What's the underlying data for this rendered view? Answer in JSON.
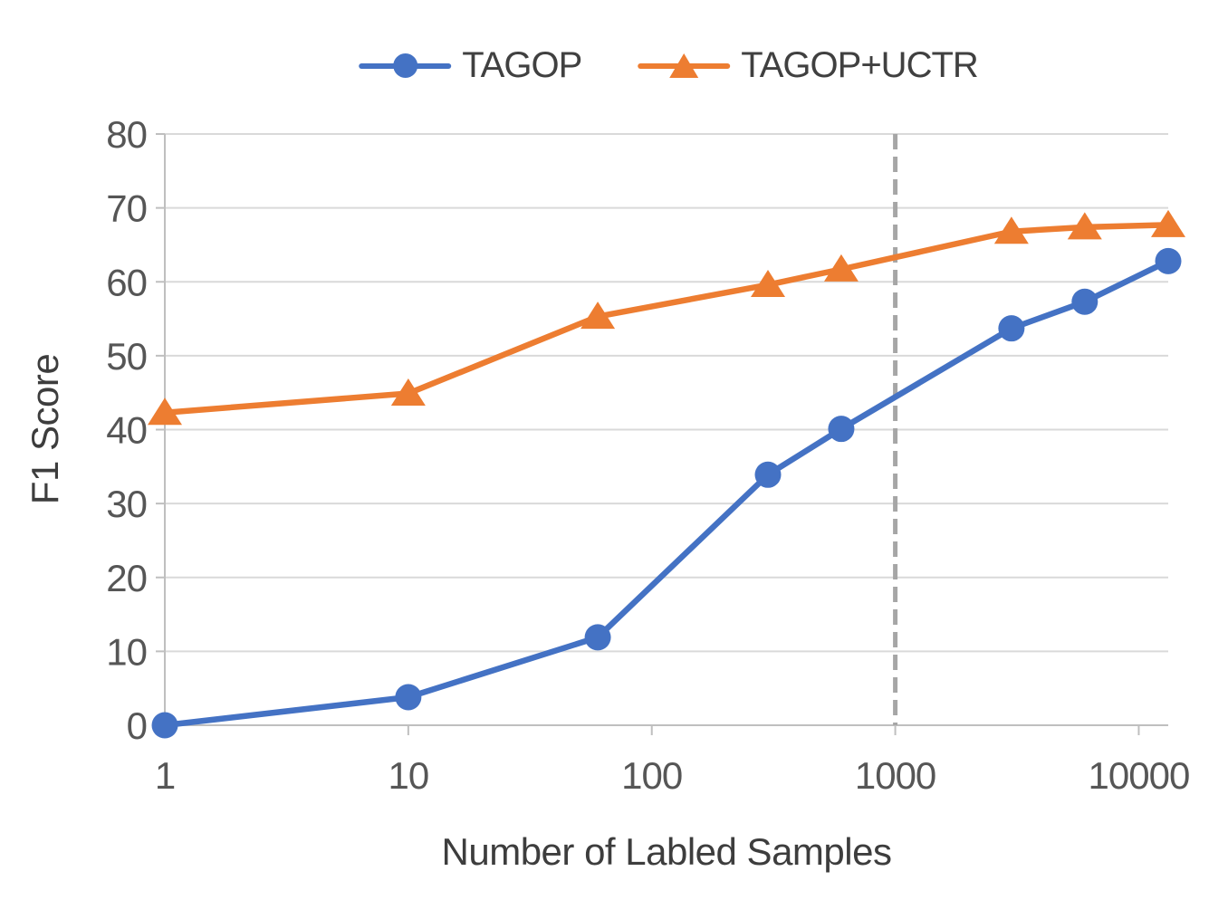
{
  "chart_data": {
    "type": "line",
    "title": "",
    "xlabel": "Number of Labled Samples",
    "ylabel": "F1 Score",
    "x_scale": "log",
    "xlim": [
      1,
      13215
    ],
    "ylim": [
      0,
      80
    ],
    "x_ticks": [
      1,
      10,
      100,
      1000,
      10000
    ],
    "x_tick_labels": [
      "1",
      "10",
      "100",
      "1000",
      "10000"
    ],
    "y_ticks": [
      0,
      10,
      20,
      30,
      40,
      50,
      60,
      70,
      80
    ],
    "grid": "horizontal",
    "legend_position": "top-center",
    "reference_line": {
      "x": 1000,
      "style": "dashed",
      "color": "#A6A6A6"
    },
    "x": [
      1,
      10,
      60,
      300,
      600,
      3000,
      6000,
      13215
    ],
    "series": [
      {
        "name": "TAGOP",
        "marker": "circle",
        "color": "#4472C4",
        "values": [
          0,
          3.8,
          11.9,
          33.9,
          40.1,
          53.7,
          57.3,
          62.8
        ]
      },
      {
        "name": "TAGOP+UCTR",
        "marker": "triangle",
        "color": "#ED7D31",
        "values": [
          42.3,
          44.9,
          55.3,
          59.6,
          61.7,
          66.8,
          67.4,
          67.7
        ]
      }
    ]
  },
  "colors": {
    "gridline": "#D9D9D9",
    "axis_line": "#BFBFBF",
    "reference_dash": "#A6A6A6",
    "tick_text": "#565656",
    "title_text": "#3d3d3d"
  }
}
